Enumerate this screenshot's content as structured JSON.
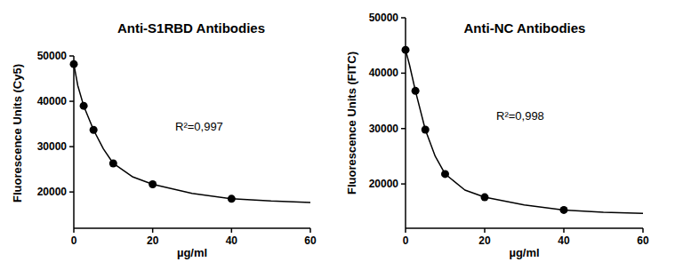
{
  "chart_data": [
    {
      "type": "scatter",
      "title": "Anti-S1RBD Antibodies",
      "x_label": "µg/ml",
      "y_label": "Fluorescence Units (Cy5)",
      "annotation": "R²=0,997",
      "xlim": [
        0,
        60
      ],
      "xticks": [
        0,
        20,
        40,
        60
      ],
      "ylim": [
        12000,
        50000
      ],
      "yticks": [
        20000,
        30000,
        40000,
        50000
      ],
      "grid": false,
      "series": [
        {
          "type": "line",
          "color": "#000000",
          "line_style": "solid",
          "x": [
            0,
            1,
            2.5,
            5,
            7.5,
            10,
            15,
            20,
            30,
            40,
            50,
            60
          ],
          "values": [
            48200,
            43500,
            39000,
            33700,
            29500,
            26300,
            23300,
            21700,
            19700,
            18500,
            18000,
            17700
          ]
        },
        {
          "type": "scatter",
          "color": "#000000",
          "marker": "circle",
          "x": [
            0,
            2.5,
            5,
            10,
            20,
            40
          ],
          "values": [
            48200,
            39000,
            33700,
            26300,
            21700,
            18500
          ]
        }
      ]
    },
    {
      "type": "scatter",
      "title": "Anti-NC Antibodies",
      "x_label": "µg/ml",
      "y_label": "Fluorescence Units (FITC)",
      "annotation": "R²=0,998",
      "xlim": [
        0,
        60
      ],
      "xticks": [
        0,
        20,
        40,
        60
      ],
      "ylim": [
        12000,
        50000
      ],
      "yticks": [
        20000,
        30000,
        40000,
        50000
      ],
      "grid": false,
      "series": [
        {
          "type": "line",
          "color": "#000000",
          "line_style": "solid",
          "x": [
            0,
            1,
            2.5,
            5,
            7.5,
            10,
            15,
            20,
            30,
            40,
            50,
            60
          ],
          "values": [
            44200,
            41500,
            36800,
            29800,
            25000,
            21800,
            18900,
            17600,
            16200,
            15300,
            14900,
            14700
          ]
        },
        {
          "type": "scatter",
          "color": "#000000",
          "marker": "circle",
          "x": [
            0,
            2.5,
            5,
            10,
            20,
            40
          ],
          "values": [
            44200,
            36800,
            29800,
            21800,
            17600,
            15300
          ]
        }
      ]
    }
  ]
}
